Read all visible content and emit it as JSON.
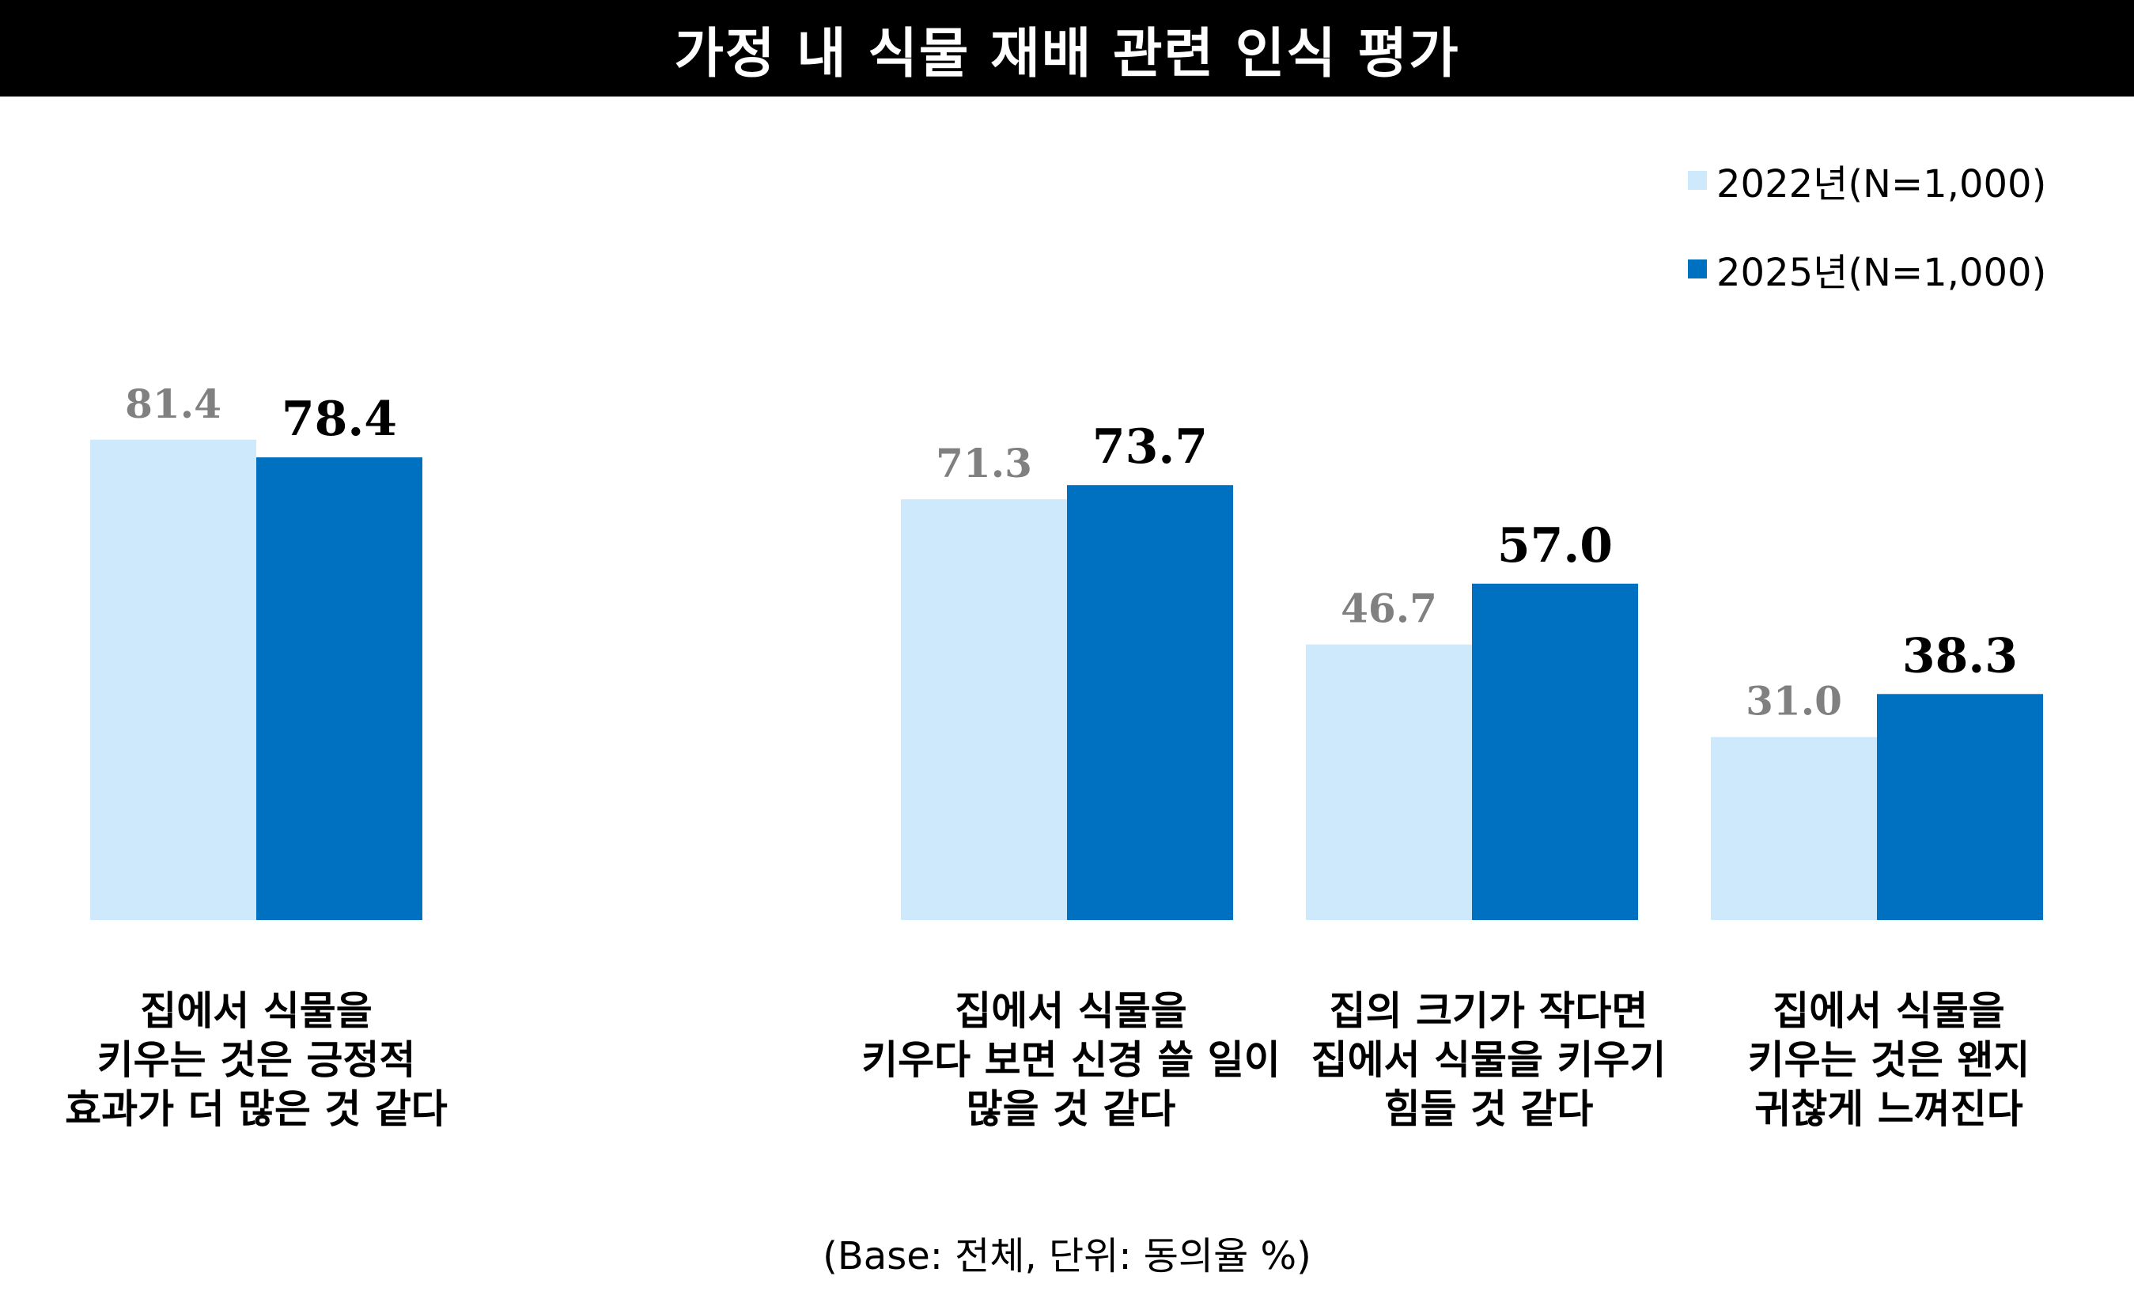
{
  "title": "가정 내 식물 재배 관련 인식 평가",
  "footnote": "(Base: 전체, 단위: 동의율 %)",
  "colors": {
    "series_2022": "#cfe9fc",
    "series_2025": "#0070c0",
    "label_2022": "#808080",
    "label_2025": "#000000"
  },
  "legend": [
    {
      "label": "2022년(N=1,000)"
    },
    {
      "label": "2025년(N=1,000)"
    }
  ],
  "chart_data": {
    "type": "bar",
    "categories": [
      "집에서 식물을\n키우는 것은 긍정적\n효과가 더 많은 것 같다",
      "집에서 식물을\n키우다 보면 신경 쓸 일이\n많을 것 같다",
      "집의 크기가 작다면\n집에서 식물을 키우기\n힘들 것 같다",
      "집에서 식물을\n키우는 것은 왠지\n귀찮게 느껴진다"
    ],
    "series": [
      {
        "name": "2022년(N=1,000)",
        "values": [
          81.4,
          71.3,
          46.7,
          31.0
        ],
        "labels": [
          "81.4",
          "71.3",
          "46.7",
          "31.0"
        ]
      },
      {
        "name": "2025년(N=1,000)",
        "values": [
          78.4,
          73.7,
          57.0,
          38.3
        ],
        "labels": [
          "78.4",
          "73.7",
          "57.0",
          "38.3"
        ]
      }
    ],
    "title": "가정 내 식물 재배 관련 인식 평가",
    "xlabel": "",
    "ylabel": "",
    "ylim": [
      0,
      100
    ],
    "grid": false,
    "legend_position": "top-right"
  }
}
